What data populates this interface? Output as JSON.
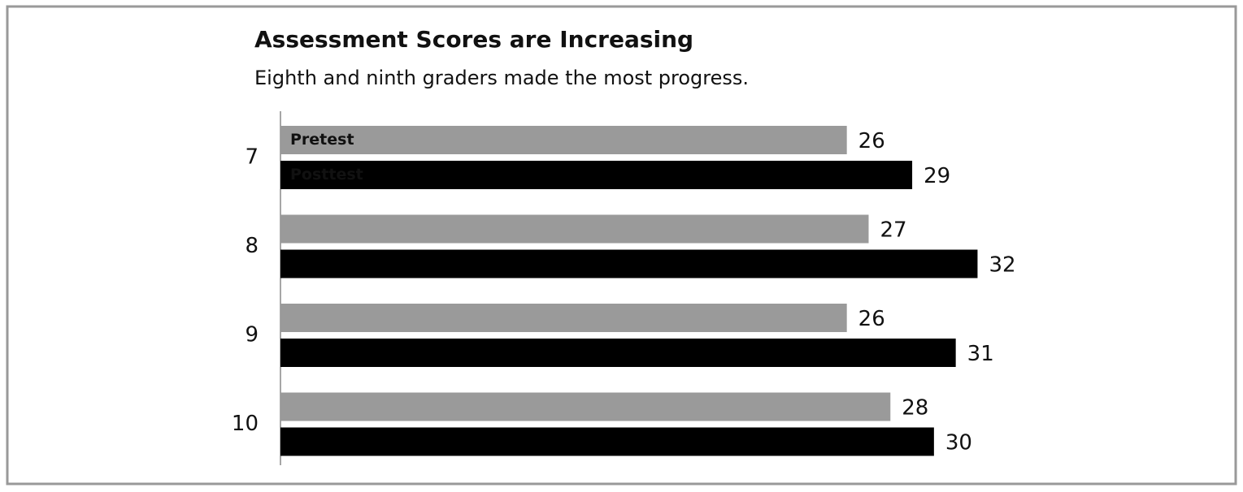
{
  "chart_data": {
    "type": "hbar",
    "title": "Assessment Scores are Increasing",
    "subtitle": "Eighth and ninth graders made the most progress.",
    "categories": [
      "7",
      "8",
      "9",
      "10"
    ],
    "series": [
      {
        "name": "Pretest",
        "color": "#9a9a9a",
        "values": [
          26,
          27,
          26,
          28
        ]
      },
      {
        "name": "Posttest",
        "color": "#000000",
        "values": [
          29,
          32,
          31,
          30
        ]
      }
    ],
    "xlim": [
      0,
      44
    ]
  }
}
